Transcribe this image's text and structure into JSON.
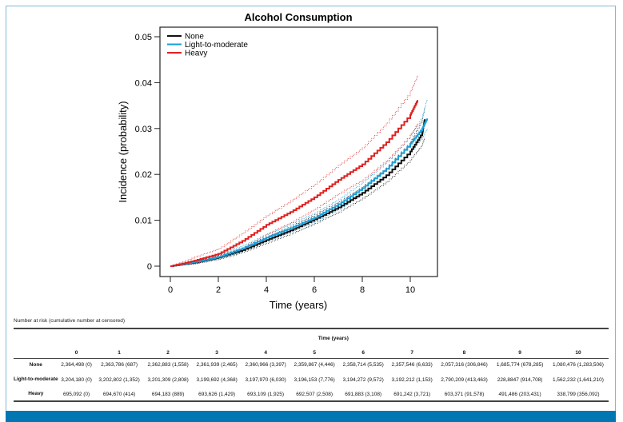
{
  "chart_data": {
    "type": "line",
    "title": "Alcohol Consumption",
    "xlabel": "Time (years)",
    "ylabel": "Incidence (probability)",
    "xlim": [
      0,
      10.7
    ],
    "ylim": [
      0,
      0.05
    ],
    "xticks": [
      0,
      2,
      4,
      6,
      8,
      10
    ],
    "yticks": [
      0,
      0.01,
      0.02,
      0.03,
      0.04,
      0.05
    ],
    "ytick_labels": [
      "0",
      "0.01",
      "0.02",
      "0.03",
      "0.04",
      "0.05"
    ],
    "legend_position": "top-left",
    "grid": false,
    "series": [
      {
        "name": "None",
        "color": "#111111",
        "x": [
          0,
          1,
          2,
          3,
          4,
          5,
          6,
          7,
          8,
          9,
          10,
          10.5,
          10.6
        ],
        "y": [
          0,
          0.0008,
          0.0019,
          0.0035,
          0.0057,
          0.0078,
          0.0102,
          0.0128,
          0.016,
          0.0198,
          0.025,
          0.029,
          0.032
        ],
        "ci_lower": [
          0,
          0.0005,
          0.0015,
          0.003,
          0.005,
          0.007,
          0.0093,
          0.0118,
          0.0148,
          0.0184,
          0.0232,
          0.0265,
          0.028
        ],
        "ci_upper": [
          0,
          0.0011,
          0.0023,
          0.004,
          0.0064,
          0.0087,
          0.0112,
          0.014,
          0.0173,
          0.0214,
          0.027,
          0.032,
          0.0345
        ]
      },
      {
        "name": "Light-to-moderate",
        "color": "#1a9ed8",
        "x": [
          0,
          1,
          2,
          3,
          4,
          5,
          6,
          7,
          8,
          9,
          10,
          10.5,
          10.7
        ],
        "y": [
          0,
          0.0009,
          0.002,
          0.0039,
          0.0062,
          0.0083,
          0.0106,
          0.0135,
          0.017,
          0.0212,
          0.0267,
          0.03,
          0.0322
        ],
        "ci_lower": [
          0,
          0.0006,
          0.0016,
          0.0033,
          0.0055,
          0.0075,
          0.0097,
          0.0125,
          0.0158,
          0.0198,
          0.025,
          0.028,
          0.03
        ],
        "ci_upper": [
          0,
          0.0012,
          0.0025,
          0.0045,
          0.0069,
          0.0092,
          0.0116,
          0.0146,
          0.0183,
          0.0227,
          0.0285,
          0.0325,
          0.0365
        ]
      },
      {
        "name": "Heavy",
        "color": "#e0201f",
        "x": [
          0,
          1,
          2,
          3,
          4,
          5,
          6,
          7,
          8,
          9,
          10,
          10.3
        ],
        "y": [
          0,
          0.0012,
          0.0027,
          0.0055,
          0.009,
          0.0118,
          0.015,
          0.0188,
          0.0222,
          0.027,
          0.033,
          0.0362
        ],
        "ci_lower": [
          0,
          0.0006,
          0.0018,
          0.004,
          0.007,
          0.0095,
          0.0124,
          0.0158,
          0.0188,
          0.023,
          0.0285,
          0.031
        ],
        "ci_upper": [
          0,
          0.002,
          0.0038,
          0.0072,
          0.011,
          0.0142,
          0.0178,
          0.022,
          0.0258,
          0.0312,
          0.038,
          0.0415
        ]
      }
    ]
  },
  "risk_table": {
    "caption": "Number at risk (cumulative number at censored)",
    "time_header": "Time (years)",
    "columns": [
      "0",
      "1",
      "2",
      "3",
      "4",
      "5",
      "6",
      "7",
      "8",
      "9",
      "10"
    ],
    "rows": [
      {
        "label": "None",
        "values": [
          "2,364,498 (0)",
          "2,363,786 (687)",
          "2,362,883 (1,558)",
          "2,361,939 (2,465)",
          "2,360,966 (3,397)",
          "2,359,867 (4,446)",
          "2,358,714 (5,535)",
          "2,357,546 (6,633)",
          "2,057,316 (306,846)",
          "1,685,774 (678,285)",
          "1,080,476 (1,283,506)"
        ]
      },
      {
        "label": "Light-to-moderate",
        "values": [
          "3,204,180 (0)",
          "3,202,802 (1,352)",
          "3,201,309 (2,808)",
          "3,199,692 (4,368)",
          "3,197,970 (6,030)",
          "3,196,153 (7,776)",
          "3,194,272 (9,572)",
          "3,192,212 (1,153)",
          "2,790,209 (413,463)",
          "228,8847 (914,708)",
          "1,562,232 (1,641,210)"
        ]
      },
      {
        "label": "Heavy",
        "values": [
          "695,092 (0)",
          "694,670 (414)",
          "694,183 (889)",
          "693,626 (1,429)",
          "693,109 (1,925)",
          "692,507 (2,508)",
          "691,883 (3,108)",
          "691,242 (3,721)",
          "603,371 (91,578)",
          "491,486 (203,431)",
          "338,799 (356,092)"
        ]
      }
    ]
  }
}
